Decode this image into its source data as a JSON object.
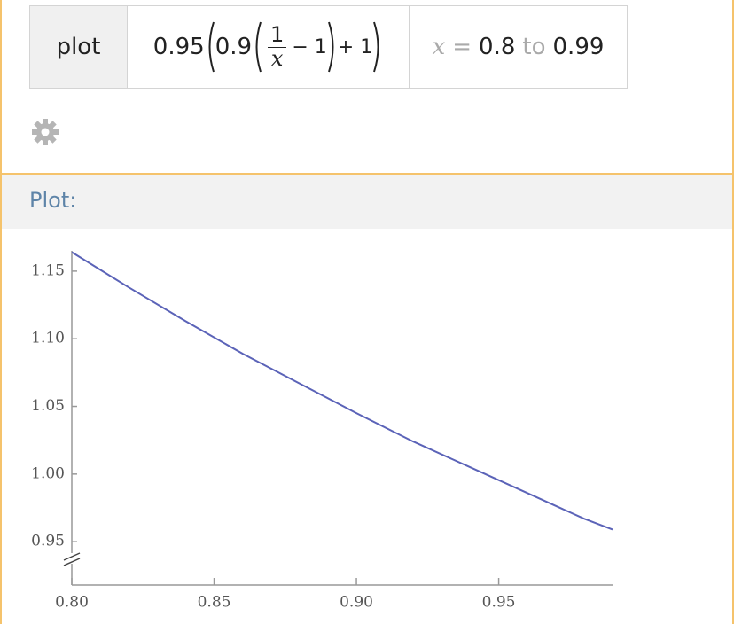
{
  "input": {
    "label": "plot",
    "expression": {
      "coef": "0.95",
      "inner": "0.9",
      "num": "1",
      "den": "x",
      "minus": "− 1",
      "plus": "+ 1"
    },
    "range": {
      "var": "x",
      "eq": "=",
      "from": "0.8",
      "to_word": "to",
      "to": "0.99"
    }
  },
  "pod": {
    "title": "Plot:"
  },
  "chart_data": {
    "type": "line",
    "x": [
      0.8,
      0.82,
      0.84,
      0.86,
      0.88,
      0.9,
      0.92,
      0.94,
      0.96,
      0.98,
      0.99
    ],
    "series": [
      {
        "color": "#5b63b8",
        "values": [
          1.164,
          1.138,
          1.113,
          1.089,
          1.067,
          1.045,
          1.024,
          1.005,
          0.986,
          0.967,
          0.959
        ]
      }
    ],
    "xlim": [
      0.8,
      0.99
    ],
    "ylim": [
      0.918,
      1.165
    ],
    "xticks": [
      {
        "value": 0.8,
        "label": "0.80"
      },
      {
        "value": 0.85,
        "label": "0.85"
      },
      {
        "value": 0.9,
        "label": "0.90"
      },
      {
        "value": 0.95,
        "label": "0.95"
      }
    ],
    "yticks": [
      {
        "value": 0.95,
        "label": "0.95"
      },
      {
        "value": 1.0,
        "label": "1.00"
      },
      {
        "value": 1.05,
        "label": "1.05"
      },
      {
        "value": 1.1,
        "label": "1.10"
      },
      {
        "value": 1.15,
        "label": "1.15"
      }
    ],
    "grid": false
  }
}
